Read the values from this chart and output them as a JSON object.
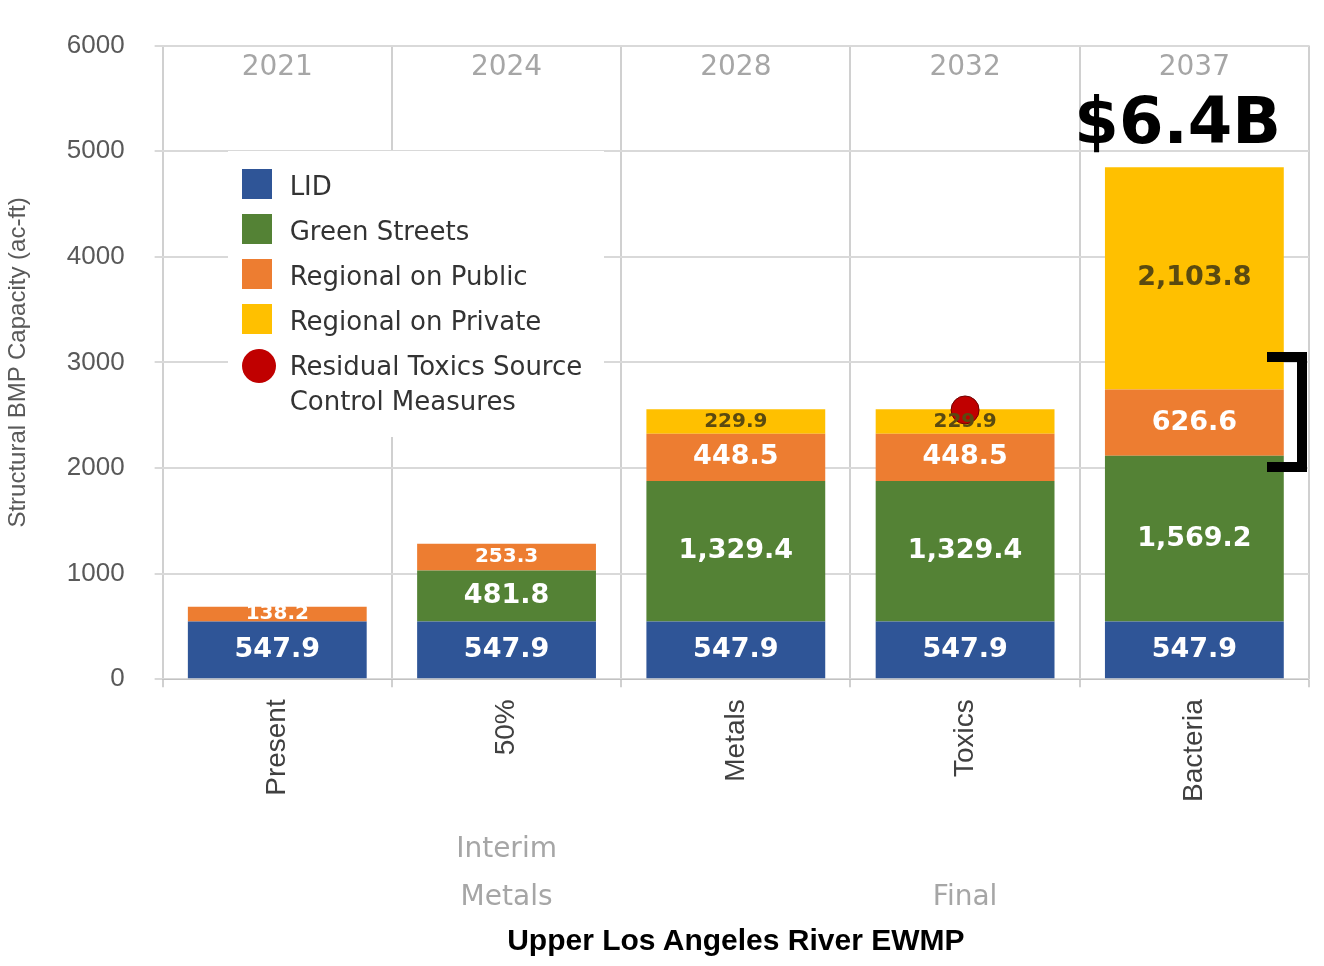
{
  "chart_data": {
    "type": "bar",
    "stacked": true,
    "xlabel": "Upper Los Angeles River EWMP",
    "ylabel": "Structural BMP Capacity (ac-ft)",
    "categories": [
      "Present",
      "50%",
      "Metals",
      "Toxics",
      "Bacteria"
    ],
    "ylim": [
      0,
      6000
    ],
    "yticks": [
      0,
      1000,
      2000,
      3000,
      4000,
      5000,
      6000
    ],
    "grid": true,
    "legend": "top left",
    "series": [
      {
        "name": "LID",
        "color": "#2f5597",
        "values": [
          547.9,
          547.9,
          547.9,
          547.9,
          547.9
        ],
        "value_labels": [
          "547.9",
          "547.9",
          "547.9",
          "547.9",
          "547.9"
        ]
      },
      {
        "name": "Green Streets",
        "color": "#548235",
        "values": [
          null,
          481.8,
          1329.4,
          1329.4,
          1569.2
        ],
        "value_labels": [
          null,
          "481.8",
          "1,329.4",
          "1,329.4",
          "1,569.2"
        ]
      },
      {
        "name": "Regional on Public",
        "color": "#ed7d31",
        "values": [
          138.2,
          253.3,
          448.5,
          448.5,
          626.6
        ],
        "value_labels": [
          "138.2",
          "253.3",
          "448.5",
          "448.5",
          "626.6"
        ]
      },
      {
        "name": "Regional on Private",
        "color": "#ffc000",
        "values": [
          null,
          null,
          229.9,
          229.9,
          2103.8
        ],
        "value_labels": [
          null,
          null,
          "229.9",
          "229.9",
          "2,103.8"
        ]
      },
      {
        "name": "Residual Toxics Source Control Measures",
        "type": "scatter",
        "color": "#c00000",
        "marker": "circle",
        "x": [
          "Toxics"
        ],
        "values": [
          2550
        ]
      }
    ],
    "annotations": [
      "2021",
      "2024",
      "2028",
      "2032",
      "2037",
      "Interim Metals",
      "Final",
      "$6.4B"
    ]
  }
}
